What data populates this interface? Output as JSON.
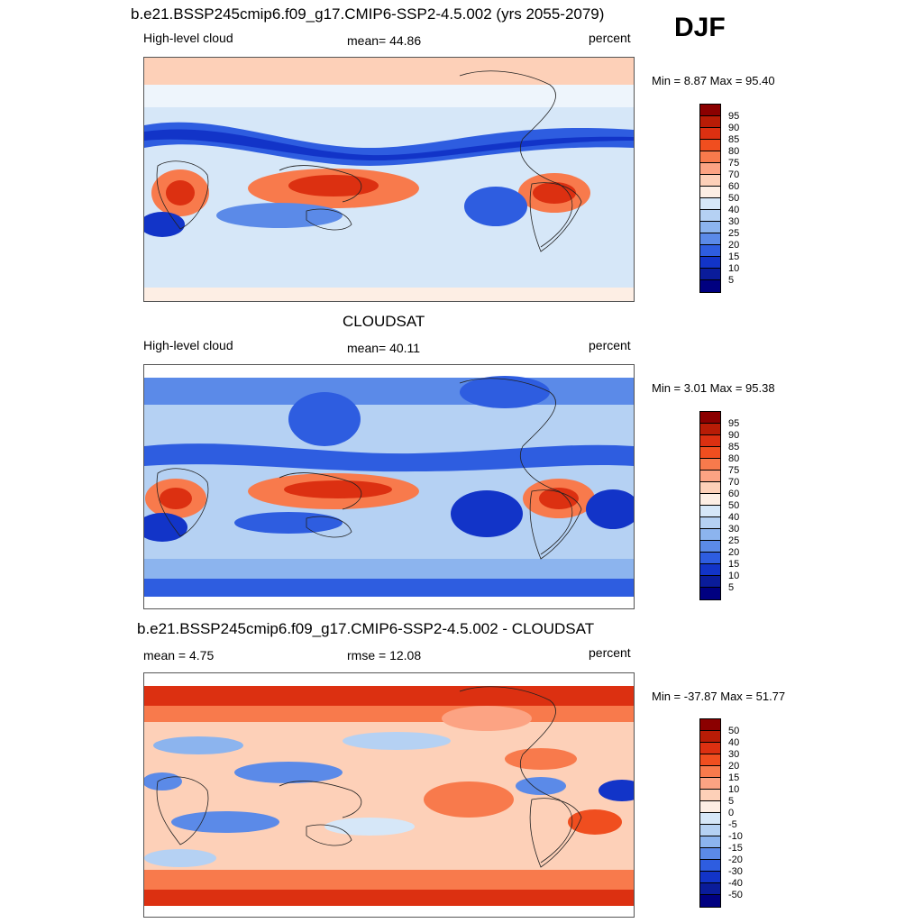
{
  "season": "DJF",
  "panels": [
    {
      "title": "b.e21.BSSP245cmip6.f09_g17.CMIP6-SSP2-4.5.002 (yrs 2055-2079)",
      "left_label": "High-level cloud",
      "center_label": "mean=  44.86",
      "right_label": "percent",
      "minmax": "Min =   8.87 Max =  95.40",
      "colorbar_labels": [
        "95",
        "90",
        "85",
        "80",
        "75",
        "70",
        "60",
        "50",
        "40",
        "30",
        "25",
        "20",
        "15",
        "10",
        "5"
      ]
    },
    {
      "title": "CLOUDSAT",
      "left_label": "High-level cloud",
      "center_label": "mean=  40.11",
      "right_label": "percent",
      "minmax": "Min =   3.01 Max =  95.38",
      "colorbar_labels": [
        "95",
        "90",
        "85",
        "80",
        "75",
        "70",
        "60",
        "50",
        "40",
        "30",
        "25",
        "20",
        "15",
        "10",
        "5"
      ]
    },
    {
      "title": "b.e21.BSSP245cmip6.f09_g17.CMIP6-SSP2-4.5.002 - CLOUDSAT",
      "left_label": "mean =   4.75",
      "center_label": "rmse =  12.08",
      "right_label": "percent",
      "minmax": "Min = -37.87 Max =  51.77",
      "colorbar_labels": [
        "50",
        "40",
        "30",
        "20",
        "15",
        "10",
        "5",
        "0",
        "-5",
        "-10",
        "-15",
        "-20",
        "-30",
        "-40",
        "-50"
      ]
    }
  ],
  "colors": {
    "absolute_scale": [
      "#8b0000",
      "#b81c06",
      "#dc3011",
      "#f04e1f",
      "#f87a4c",
      "#fca383",
      "#fdd0b8",
      "#fdeee4",
      "#d6e7f8",
      "#b5d1f3",
      "#8cb4ee",
      "#5b8ae8",
      "#2e5de0",
      "#1234c8",
      "#0a1c9a",
      "#000080"
    ],
    "diff_scale": [
      "#8b0000",
      "#b81c06",
      "#dc3011",
      "#f04e1f",
      "#f87a4c",
      "#fca383",
      "#fdd0b8",
      "#fdeee4",
      "#d6e7f8",
      "#b5d1f3",
      "#8cb4ee",
      "#5b8ae8",
      "#2e5de0",
      "#1234c8",
      "#0a1c9a",
      "#000080"
    ]
  }
}
